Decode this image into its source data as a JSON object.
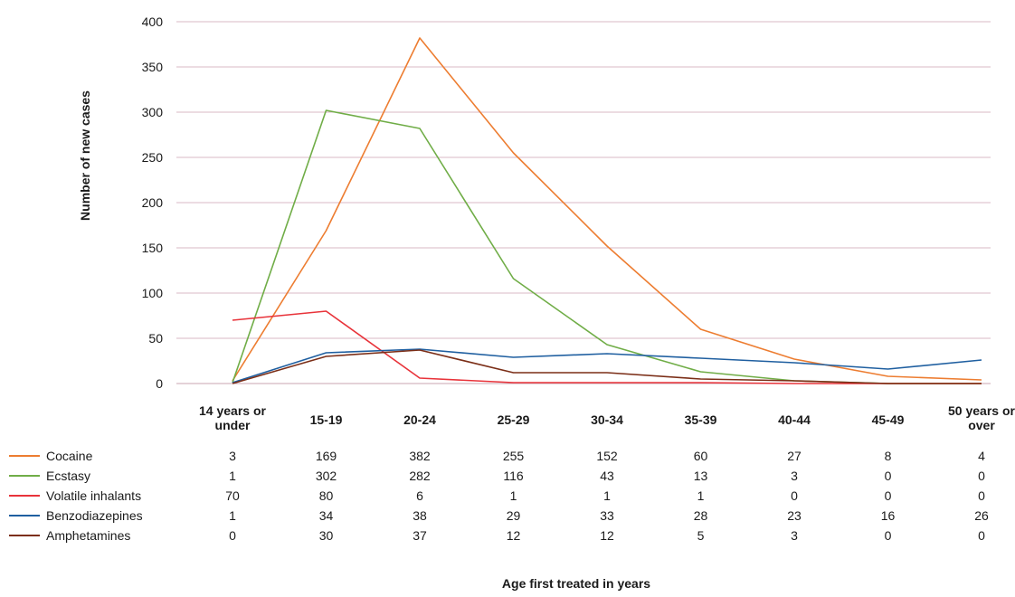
{
  "chart_data": {
    "type": "line",
    "title": "",
    "xlabel": "Age first treated in years",
    "ylabel": "Number of new cases",
    "ylim": [
      0,
      400
    ],
    "yticks": [
      0,
      50,
      100,
      150,
      200,
      250,
      300,
      350,
      400
    ],
    "grid": true,
    "legend": "bottom-left (data table)",
    "categories": [
      [
        "14 years or",
        "under"
      ],
      [
        "15-19"
      ],
      [
        "20-24"
      ],
      [
        "25-29"
      ],
      [
        "30-34"
      ],
      [
        "35-39"
      ],
      [
        "40-44"
      ],
      [
        "45-49"
      ],
      [
        "50 years or",
        "over"
      ]
    ],
    "series": [
      {
        "name": "Cocaine",
        "color": "#ed7d31",
        "values": [
          3,
          169,
          382,
          255,
          152,
          60,
          27,
          8,
          4
        ]
      },
      {
        "name": "Ecstasy",
        "color": "#70ad47",
        "values": [
          1,
          302,
          282,
          116,
          43,
          13,
          3,
          0,
          0
        ]
      },
      {
        "name": "Volatile inhalants",
        "color": "#e8333a",
        "values": [
          70,
          80,
          6,
          1,
          1,
          1,
          0,
          0,
          0
        ]
      },
      {
        "name": "Benzodiazepines",
        "color": "#1f5fa0",
        "values": [
          1,
          34,
          38,
          29,
          33,
          28,
          23,
          16,
          26
        ]
      },
      {
        "name": "Amphetamines",
        "color": "#7b2e17",
        "values": [
          0,
          30,
          37,
          12,
          12,
          5,
          3,
          0,
          0
        ]
      }
    ]
  }
}
